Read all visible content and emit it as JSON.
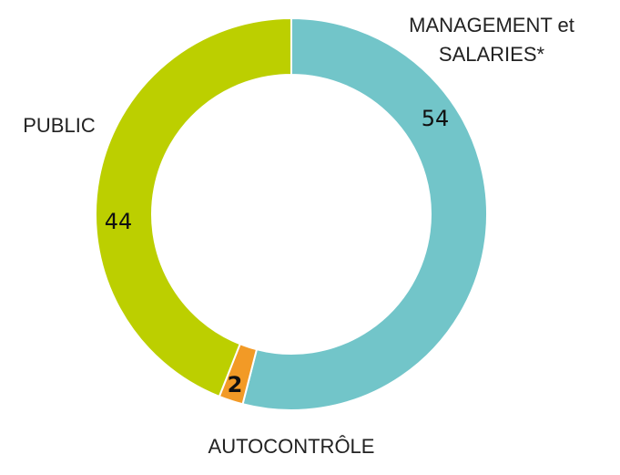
{
  "chart_data": {
    "type": "donut",
    "categories": [
      "MANAGEMENT et SALARIES*",
      "AUTOCONTRÔLE",
      "PUBLIC"
    ],
    "values": [
      54,
      2,
      44
    ],
    "colors": [
      "#72c5c9",
      "#f29a26",
      "#bccf00"
    ]
  }
}
